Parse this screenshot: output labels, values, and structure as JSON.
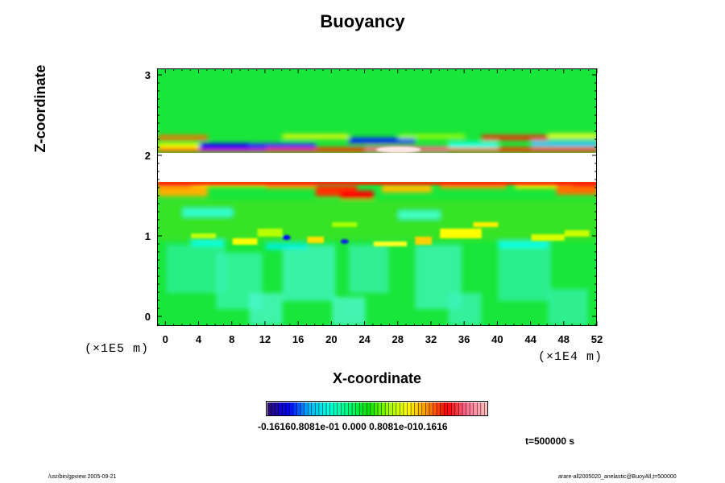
{
  "title": "Buoyancy",
  "chart_data": {
    "type": "heatmap",
    "title": "Buoyancy",
    "xlabel": "X-coordinate",
    "ylabel": "Z-coordinate",
    "x_unit": "(×1E4 m)",
    "y_unit": "(×1E5 m)",
    "x_ticks": [
      "0",
      "4",
      "8",
      "12",
      "16",
      "20",
      "24",
      "28",
      "32",
      "36",
      "40",
      "44",
      "48",
      "52"
    ],
    "y_ticks": [
      "0",
      "1",
      "2",
      "3"
    ],
    "xlim": [
      -1,
      52
    ],
    "ylim": [
      -0.12,
      3.08
    ],
    "colorbar": {
      "labels": "-0.16160.8081e-01 0.000 0.8081e-010.1616",
      "range": [
        -0.1616,
        0.1616
      ],
      "colors": [
        "#2b0a7a",
        "#0000ff",
        "#00b4ff",
        "#00ffe0",
        "#00ff80",
        "#00e000",
        "#9cff00",
        "#ffff00",
        "#ff9000",
        "#ff0000",
        "#ff6f8f",
        "#ffc0c0"
      ]
    },
    "background_value_color": "#19e63a",
    "features": [
      {
        "name": "undefined-band",
        "z_range": [
          1.68,
          2.04
        ],
        "color": "#ffffff"
      },
      {
        "name": "upper-stripe",
        "z_range": [
          2.05,
          2.35
        ],
        "color_mix": [
          "#ff0000",
          "#0000ff",
          "#00ffe0",
          "#ffff00"
        ]
      },
      {
        "name": "lower-red-edge",
        "z_range": [
          1.45,
          1.72
        ],
        "color_mix": [
          "#ff0000",
          "#ff9000",
          "#ffff00"
        ]
      },
      {
        "name": "mid-yellow-band",
        "z_range": [
          0.85,
          1.3
        ],
        "color_mix": [
          "#ffff00",
          "#00ffe0"
        ]
      },
      {
        "name": "lower-cyan-region",
        "z_range": [
          -0.12,
          0.95
        ],
        "color_mix": [
          "#00ff80",
          "#00ffe0"
        ]
      }
    ]
  },
  "time_label": "t=500000 s",
  "footer_left": "/usr/bin/gpview 2005-09-21",
  "footer_right": "arare-all2005020_anelastic@BuoyAll,t=500000"
}
